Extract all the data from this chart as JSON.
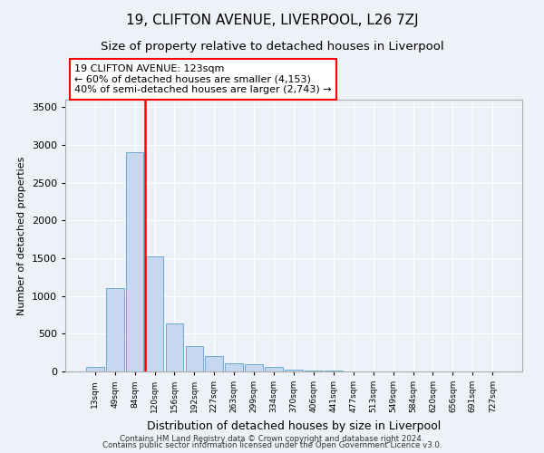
{
  "title1": "19, CLIFTON AVENUE, LIVERPOOL, L26 7ZJ",
  "title2": "Size of property relative to detached houses in Liverpool",
  "xlabel": "Distribution of detached houses by size in Liverpool",
  "ylabel": "Number of detached properties",
  "categories": [
    "13sqm",
    "49sqm",
    "84sqm",
    "120sqm",
    "156sqm",
    "192sqm",
    "227sqm",
    "263sqm",
    "299sqm",
    "334sqm",
    "370sqm",
    "406sqm",
    "441sqm",
    "477sqm",
    "513sqm",
    "549sqm",
    "584sqm",
    "620sqm",
    "656sqm",
    "691sqm",
    "727sqm"
  ],
  "values": [
    55,
    1100,
    2900,
    1520,
    640,
    340,
    200,
    105,
    100,
    55,
    30,
    15,
    8,
    5,
    3,
    2,
    1,
    1,
    1,
    1,
    1
  ],
  "bar_color": "#c5d8f0",
  "bar_edge_color": "#6aaad4",
  "vline_index": 3,
  "vline_color": "red",
  "annotation_text": "19 CLIFTON AVENUE: 123sqm\n← 60% of detached houses are smaller (4,153)\n40% of semi-detached houses are larger (2,743) →",
  "annotation_box_edgecolor": "red",
  "ylim": [
    0,
    3600
  ],
  "yticks": [
    0,
    500,
    1000,
    1500,
    2000,
    2500,
    3000,
    3500
  ],
  "footer1": "Contains HM Land Registry data © Crown copyright and database right 2024.",
  "footer2": "Contains public sector information licensed under the Open Government Licence v3.0.",
  "bg_color": "#eef1f8",
  "plot_bg_color": "#eef1f8",
  "grid_color": "white",
  "title1_fontsize": 11,
  "title2_fontsize": 9.5,
  "xlabel_fontsize": 9,
  "ylabel_fontsize": 8
}
